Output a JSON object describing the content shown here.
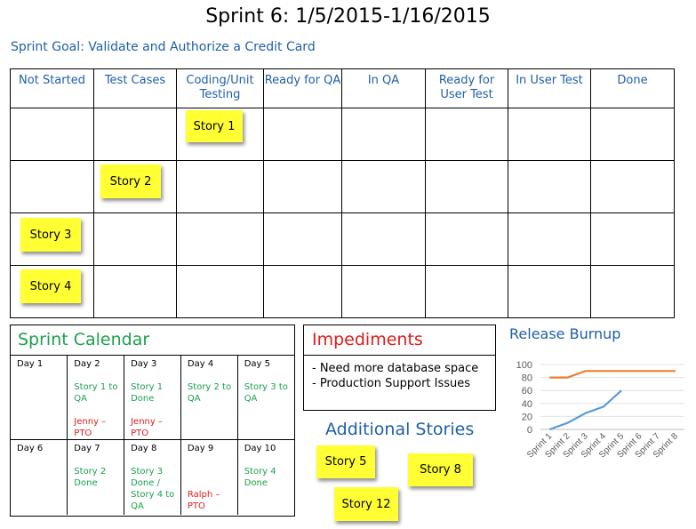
{
  "title": "Sprint 6: 1/5/2015-1/16/2015",
  "goal": "Sprint Goal: Validate and Authorize a Credit Card",
  "board": {
    "columns": [
      "Not Started",
      "Test Cases",
      "Coding/Unit Testing",
      "Ready for QA",
      "In QA",
      "Ready for User Test",
      "In User Test",
      "Done"
    ],
    "stories": [
      "Story 1",
      "Story 2",
      "Story 3",
      "Story 4"
    ]
  },
  "calendar": {
    "title": "Sprint Calendar",
    "days": [
      {
        "day": "Day 1",
        "green": "",
        "red": ""
      },
      {
        "day": "Day 2",
        "green": "Story 1 to QA",
        "red": "Jenny – PTO"
      },
      {
        "day": "Day 3",
        "green": "Story 1 Done",
        "red": "Jenny – PTO"
      },
      {
        "day": "Day 4",
        "green": "Story 2 to QA",
        "red": ""
      },
      {
        "day": "Day 5",
        "green": "Story 3 to QA",
        "red": ""
      },
      {
        "day": "Day 6",
        "green": "",
        "red": ""
      },
      {
        "day": "Day 7",
        "green": "Story 2 Done",
        "red": ""
      },
      {
        "day": "Day 8",
        "green": "Story 3 Done / Story 4 to QA",
        "red": ""
      },
      {
        "day": "Day 9",
        "green": "",
        "red": "Ralph – PTO"
      },
      {
        "day": "Day 10",
        "green": "Story 4 Done",
        "red": ""
      }
    ]
  },
  "impediments": {
    "title": "Impediments",
    "items": [
      "-  Need more database space",
      "-  Production Support Issues"
    ]
  },
  "additional": {
    "title": "Additional Stories",
    "stories": [
      "Story 5",
      "Story 8",
      "Story 12"
    ]
  },
  "burnup": {
    "title": "Release Burnup"
  },
  "chart_data": {
    "type": "line",
    "title": "Release Burnup",
    "categories": [
      "Sprint 1",
      "Sprint 2",
      "Sprint 3",
      "Sprint 4",
      "Sprint 5",
      "Sprint 6",
      "Sprint 7",
      "Sprint 8"
    ],
    "series": [
      {
        "values": [
          80,
          80,
          90,
          90,
          90,
          90,
          90,
          90
        ],
        "color": "#ed7d31"
      },
      {
        "values": [
          0,
          10,
          25,
          35,
          60,
          null,
          null,
          null
        ],
        "color": "#5b9bd5"
      }
    ],
    "yticks": [
      "100",
      "80",
      "60",
      "40",
      "20",
      "0"
    ],
    "ylim": [
      0,
      100
    ],
    "grid": true,
    "legend": "none"
  }
}
